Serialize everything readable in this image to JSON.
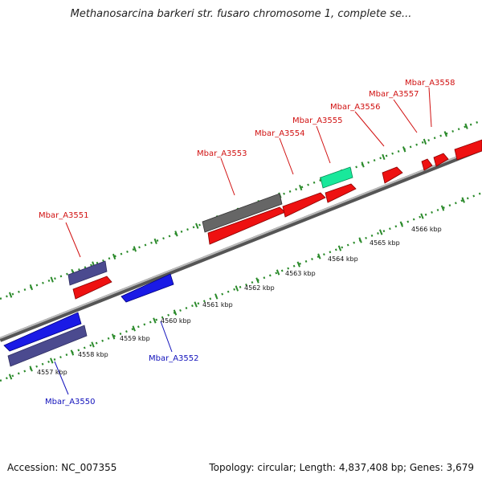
{
  "title": "Methanosarcina barkeri str. fusaro chromosome 1, complete se...",
  "accession": "Accession: NC_007355",
  "topology": "Topology: circular; Length: 4,837,408 bp; Genes: 3,679",
  "colors": {
    "forward_gene": "#ee1111",
    "reverse_gene": "#1a1ae6",
    "feature_purple": "#4b4a8f",
    "feature_gray": "#666666",
    "feature_green": "#19e89b",
    "forward_label": "#d11111",
    "reverse_label": "#1111bb",
    "ticks": "#2a8a2a"
  },
  "kbp_labels": [
    {
      "label": "4557 kbp"
    },
    {
      "label": "4558 kbp"
    },
    {
      "label": "4559 kbp"
    },
    {
      "label": "4560 kbp"
    },
    {
      "label": "4561 kbp"
    },
    {
      "label": "4562 kbp"
    },
    {
      "label": "4563 kbp"
    },
    {
      "label": "4564 kbp"
    },
    {
      "label": "4565 kbp"
    },
    {
      "label": "4566 kbp"
    }
  ],
  "gene_labels": [
    {
      "label": "Mbar_A3551",
      "strand": "forward"
    },
    {
      "label": "Mbar_A3553",
      "strand": "forward"
    },
    {
      "label": "Mbar_A3554",
      "strand": "forward"
    },
    {
      "label": "Mbar_A3555",
      "strand": "forward"
    },
    {
      "label": "Mbar_A3556",
      "strand": "forward"
    },
    {
      "label": "Mbar_A3557",
      "strand": "forward"
    },
    {
      "label": "Mbar_A3558",
      "strand": "forward"
    },
    {
      "label": "Mbar_A3552",
      "strand": "reverse"
    },
    {
      "label": "Mbar_A3550",
      "strand": "reverse"
    }
  ]
}
